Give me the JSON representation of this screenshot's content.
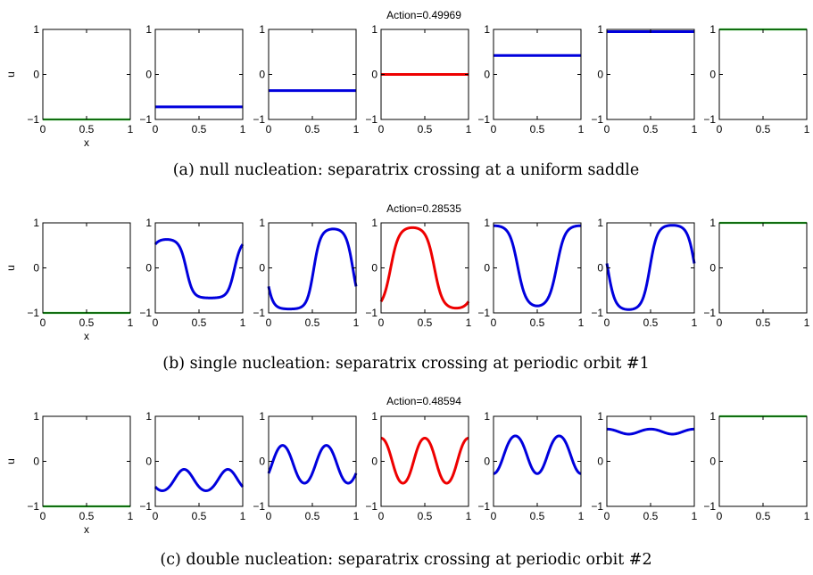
{
  "colors": {
    "initial": "#22dd22",
    "path": "#0000dd",
    "saddle": "#ee0000",
    "axes": "#000000"
  },
  "chart_data": [
    {
      "type": "line",
      "title": "Action=0.49969",
      "caption": "(a)  null nucleation: separatrix crossing at a uniform saddle",
      "xlabel": "x",
      "ylabel": "u",
      "xlim": [
        0,
        1
      ],
      "ylim": [
        -1,
        1
      ],
      "x_ticks": [
        "0",
        "0.5",
        "1"
      ],
      "y_ticks": [
        "−1",
        "0",
        "1"
      ],
      "panels": [
        {
          "kind": "initial",
          "curve": {
            "form": "const",
            "c": -1.0
          }
        },
        {
          "kind": "path",
          "curve": {
            "form": "const",
            "c": -0.72
          }
        },
        {
          "kind": "path",
          "curve": {
            "form": "const",
            "c": -0.36
          }
        },
        {
          "kind": "saddle",
          "curve": {
            "form": "const",
            "c": 0.0
          }
        },
        {
          "kind": "path",
          "curve": {
            "form": "const",
            "c": 0.42
          }
        },
        {
          "kind": "path",
          "curve": {
            "form": "const",
            "c": 0.95
          }
        },
        {
          "kind": "final",
          "curve": {
            "form": "const",
            "c": 1.0
          }
        }
      ]
    },
    {
      "type": "line",
      "title": "Action=0.28535",
      "caption": "(b)  single nucleation: separatrix crossing at periodic orbit #1",
      "xlabel": "x",
      "ylabel": "u",
      "xlim": [
        0,
        1
      ],
      "ylim": [
        -1,
        1
      ],
      "x_ticks": [
        "0",
        "0.5",
        "1"
      ],
      "y_ticks": [
        "−1",
        "0",
        "1"
      ],
      "panels": [
        {
          "kind": "initial",
          "curve": {
            "form": "const",
            "c": -1.0
          }
        },
        {
          "kind": "path",
          "curve": {
            "form": "sat",
            "c": -0.35,
            "a": 2.0,
            "k": 1,
            "phi": 0.13,
            "vmax": 0.68
          }
        },
        {
          "kind": "path",
          "curve": {
            "form": "sat",
            "c": -0.35,
            "a": 2.0,
            "k": 1,
            "phi": 0.74,
            "vmax": 0.93
          }
        },
        {
          "kind": "saddle",
          "curve": {
            "form": "sat",
            "c": 0.0,
            "a": 1.6,
            "k": 1,
            "phi": 0.36,
            "vmax": 0.97
          }
        },
        {
          "kind": "path",
          "curve": {
            "form": "sat",
            "c": 0.3,
            "a": 1.6,
            "k": 1,
            "phi": 0.0,
            "vmax": 0.98
          }
        },
        {
          "kind": "path",
          "curve": {
            "form": "sat",
            "c": 0.1,
            "a": 1.8,
            "k": 1,
            "phi": 0.75,
            "vmax": 0.99
          }
        },
        {
          "kind": "final",
          "curve": {
            "form": "const",
            "c": 1.0
          }
        }
      ]
    },
    {
      "type": "line",
      "title": "Action=0.48594",
      "caption": "(c)  double nucleation: separatrix crossing at periodic orbit #2",
      "xlabel": "x",
      "ylabel": "u",
      "xlim": [
        0,
        1
      ],
      "ylim": [
        -1,
        1
      ],
      "x_ticks": [
        "0",
        "0.5",
        "1"
      ],
      "y_ticks": [
        "−1",
        "0",
        "1"
      ],
      "panels": [
        {
          "kind": "initial",
          "curve": {
            "form": "const",
            "c": -1.0
          }
        },
        {
          "kind": "path",
          "curve": {
            "form": "sat",
            "c": -0.48,
            "a": 0.3,
            "k": 2,
            "phi": 0.33,
            "vmax": 1.0
          }
        },
        {
          "kind": "path",
          "curve": {
            "form": "sat",
            "c": -0.08,
            "a": 0.45,
            "k": 2,
            "phi": 0.16,
            "vmax": 1.0
          }
        },
        {
          "kind": "saddle",
          "curve": {
            "form": "sat",
            "c": 0.02,
            "a": 0.55,
            "k": 2,
            "phi": 0.0,
            "vmax": 1.0
          }
        },
        {
          "kind": "path",
          "curve": {
            "form": "sat",
            "c": 0.18,
            "a": 0.46,
            "k": 2,
            "phi": 0.25,
            "vmax": 1.0
          }
        },
        {
          "kind": "path",
          "curve": {
            "form": "sat",
            "c": 0.8,
            "a": 0.1,
            "k": 2,
            "phi": 0.0,
            "vmax": 1.0
          }
        },
        {
          "kind": "final",
          "curve": {
            "form": "const",
            "c": 1.0
          }
        }
      ]
    }
  ]
}
